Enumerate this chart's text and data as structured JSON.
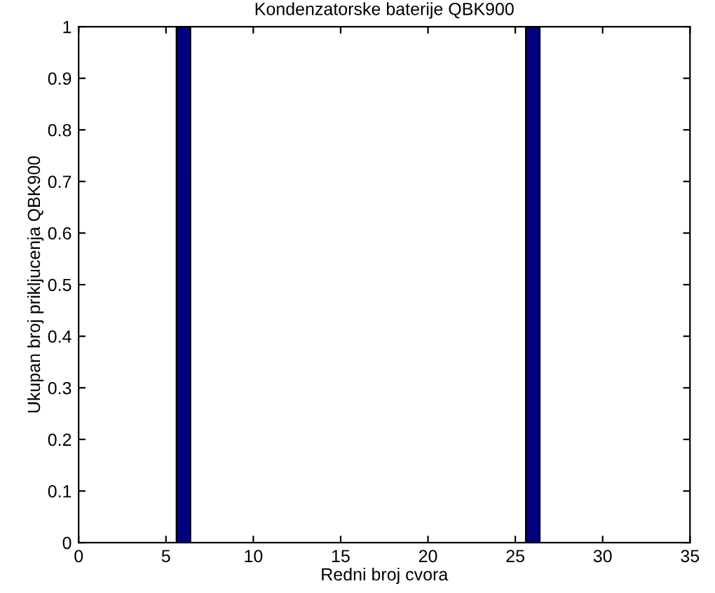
{
  "chart_data": {
    "type": "bar",
    "title": "Kondenzatorske baterije QBK900",
    "xlabel": "Redni broj cvora",
    "ylabel": "Ukupan broj prikljucenja QBK900",
    "x": [
      6,
      26
    ],
    "series": [
      {
        "color": "#000080",
        "values": [
          1,
          1
        ]
      }
    ],
    "xlim": [
      0,
      35
    ],
    "xticks": [
      0,
      5,
      10,
      15,
      20,
      25,
      30,
      35
    ],
    "ylim": [
      0,
      1
    ],
    "yticks": [
      0,
      0.1,
      0.2,
      0.3,
      0.4,
      0.5,
      0.6,
      0.7,
      0.8,
      0.9,
      1
    ],
    "grid": false,
    "legend": false
  }
}
